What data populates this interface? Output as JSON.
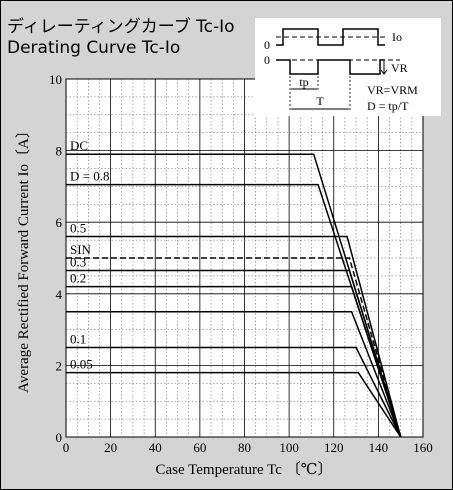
{
  "title_jp": "ディレーティングカーブ Tc-Io",
  "title_en": "Derating Curve Tc-Io",
  "chart_data": {
    "type": "line",
    "xlabel": "Case Temperature  Tc 〔℃〕",
    "ylabel": "Average Rectified Forward Current  Io〔A〕",
    "xlim": [
      0,
      160
    ],
    "ylim": [
      0,
      10
    ],
    "x_ticks": [
      0,
      20,
      40,
      60,
      80,
      100,
      120,
      140,
      160
    ],
    "y_ticks": [
      0,
      2,
      4,
      6,
      8,
      10
    ],
    "grid": true,
    "series": [
      {
        "name": "DC",
        "dashed": false,
        "x": [
          0,
          111,
          150
        ],
        "y": [
          7.9,
          7.9,
          0
        ]
      },
      {
        "name": "D = 0.8",
        "dashed": false,
        "x": [
          0,
          113,
          150
        ],
        "y": [
          7.05,
          7.05,
          0
        ]
      },
      {
        "name": "0.5",
        "dashed": false,
        "x": [
          0,
          126,
          150
        ],
        "y": [
          5.6,
          5.6,
          0
        ]
      },
      {
        "name": "SIN",
        "dashed": true,
        "x": [
          0,
          127,
          150
        ],
        "y": [
          5.0,
          5.0,
          0
        ]
      },
      {
        "name": "0.3",
        "dashed": false,
        "x": [
          0,
          127,
          150
        ],
        "y": [
          4.65,
          4.65,
          0
        ]
      },
      {
        "name": "0.2",
        "dashed": false,
        "x": [
          0,
          128,
          150
        ],
        "y": [
          4.2,
          4.2,
          0
        ]
      },
      {
        "name": "",
        "dashed": false,
        "x": [
          0,
          128,
          150
        ],
        "y": [
          3.5,
          3.5,
          0
        ]
      },
      {
        "name": "0.1",
        "dashed": false,
        "x": [
          0,
          130,
          150
        ],
        "y": [
          2.5,
          2.5,
          0
        ]
      },
      {
        "name": "0.05",
        "dashed": false,
        "x": [
          0,
          131,
          150
        ],
        "y": [
          1.8,
          1.8,
          0
        ]
      }
    ],
    "legend_box": {
      "zero_label": "0",
      "io_label": "Io",
      "vr_label": "VR",
      "tp_label": "tp",
      "t_label": "T",
      "vr_eq": "VR=VRM",
      "d_eq": "D = tp/T"
    }
  }
}
